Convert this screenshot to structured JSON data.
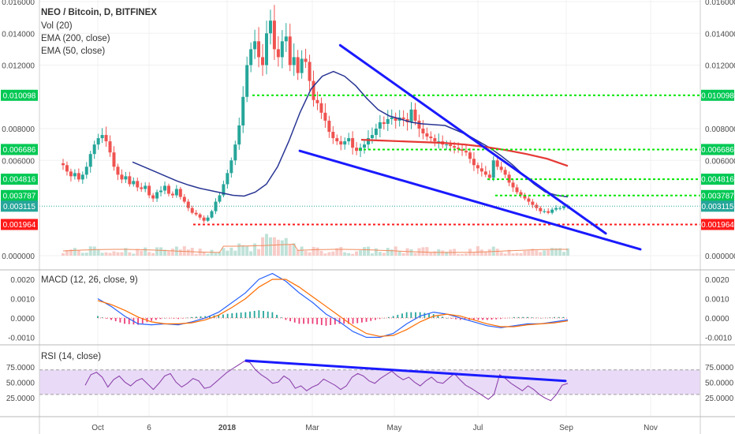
{
  "chart_data": {
    "type": "candlestick",
    "symbol_label": "NEO / Bitcoin, D, BITFINEX",
    "legend_lines": [
      "Vol (20)",
      "EMA (200, close)",
      "EMA (50, close)"
    ],
    "x_axis": {
      "ticks": [
        {
          "label": "Oct",
          "bold": false
        },
        {
          "label": "6",
          "bold": false
        },
        {
          "label": "2018",
          "bold": true
        },
        {
          "label": "Mar",
          "bold": false
        },
        {
          "label": "May",
          "bold": false
        },
        {
          "label": "Jul",
          "bold": false
        },
        {
          "label": "Sep",
          "bold": false
        },
        {
          "label": "Nov",
          "bold": false
        }
      ]
    },
    "price_axis": {
      "ticks": [
        "0.016000",
        "0.014000",
        "0.012000",
        "0.008000",
        "0.006000",
        "0.000000"
      ],
      "ylim": [
        0,
        0.016
      ]
    },
    "levels": [
      {
        "label": "0.010098",
        "value": 0.010098,
        "color": "#00e600",
        "tag_color": "#00c853",
        "style": "dotted"
      },
      {
        "label": "0.006686",
        "value": 0.006686,
        "color": "#00e600",
        "tag_color": "#00c853",
        "style": "dotted"
      },
      {
        "label": "0.004816",
        "value": 0.004816,
        "color": "#00e600",
        "tag_color": "#00c853",
        "style": "dotted"
      },
      {
        "label": "0.003787",
        "value": 0.003787,
        "color": "#00e600",
        "tag_color": "#00c853",
        "style": "dotted"
      },
      {
        "label": "0.003115",
        "value": 0.003115,
        "color": "#26a69a",
        "tag_color": "#26a69a",
        "style": "dotted-thin"
      },
      {
        "label": "0.001964",
        "value": 0.001964,
        "color": "#ff1a1a",
        "tag_color": "#ff1a1a",
        "style": "dotted"
      }
    ],
    "price_series": [
      0.0057,
      0.0053,
      0.005,
      0.0052,
      0.0048,
      0.0051,
      0.0056,
      0.0064,
      0.007,
      0.0074,
      0.0076,
      0.0072,
      0.0065,
      0.0056,
      0.0051,
      0.0048,
      0.005,
      0.0045,
      0.0047,
      0.0043,
      0.0042,
      0.0044,
      0.0038,
      0.0036,
      0.004,
      0.0041,
      0.0044,
      0.0039,
      0.0038,
      0.0042,
      0.0037,
      0.0034,
      0.003,
      0.0027,
      0.0026,
      0.0024,
      0.0022,
      0.0024,
      0.0028,
      0.0034,
      0.0038,
      0.0045,
      0.0052,
      0.006,
      0.007,
      0.0082,
      0.01,
      0.012,
      0.013,
      0.0135,
      0.0125,
      0.012,
      0.014,
      0.0148,
      0.013,
      0.0125,
      0.0135,
      0.0138,
      0.012,
      0.0125,
      0.0115,
      0.0124,
      0.0122,
      0.011,
      0.0098,
      0.0096,
      0.009,
      0.0085,
      0.0078,
      0.0074,
      0.0072,
      0.007,
      0.0072,
      0.0074,
      0.0068,
      0.0066,
      0.0068,
      0.007,
      0.0074,
      0.0076,
      0.008,
      0.0084,
      0.0083,
      0.0086,
      0.0087,
      0.0085,
      0.0087,
      0.0086,
      0.0084,
      0.0092,
      0.0085,
      0.008,
      0.0077,
      0.0075,
      0.0074,
      0.0072,
      0.0072,
      0.007,
      0.007,
      0.0069,
      0.0068,
      0.0067,
      0.0066,
      0.0065,
      0.0061,
      0.0057,
      0.0055,
      0.0053,
      0.0051,
      0.0049,
      0.006,
      0.0056,
      0.0054,
      0.0051,
      0.0046,
      0.0043,
      0.004,
      0.0038,
      0.0036,
      0.0034,
      0.0032,
      0.003,
      0.0028,
      0.0028,
      0.0027,
      0.0029,
      0.003,
      0.003,
      0.0031,
      0.00315
    ],
    "ema50_series": [
      0.0059,
      0.0056,
      0.0053,
      0.005,
      0.0047,
      0.00445,
      0.00425,
      0.0041,
      0.00395,
      0.0038,
      0.00375,
      0.004,
      0.0045,
      0.0056,
      0.0072,
      0.009,
      0.0105,
      0.0113,
      0.0116,
      0.0113,
      0.0107,
      0.0099,
      0.0092,
      0.0088,
      0.0086,
      0.0084,
      0.0083,
      0.00825,
      0.0082,
      0.0079,
      0.0076,
      0.0072,
      0.0068,
      0.0063,
      0.00575,
      0.0051,
      0.0045,
      0.004,
      0.0038,
      0.0037
    ],
    "ema200_series": [
      0.0073,
      0.00725,
      0.0072,
      0.00715,
      0.0071,
      0.007,
      0.00685,
      0.00665,
      0.0064,
      0.0061,
      0.00565
    ],
    "trendlines": [
      {
        "name": "upper",
        "from": [
          0.48,
          0.01325
        ],
        "to": [
          0.94,
          0.0014
        ]
      },
      {
        "name": "lower",
        "from": [
          0.41,
          0.0066
        ],
        "to": [
          1.0,
          0.0004
        ]
      }
    ],
    "macd": {
      "label": "MACD (12, 26, close, 9)",
      "ticks": [
        "0.0020",
        "0.0010",
        "0.0000",
        "-0.0010"
      ],
      "ylim": [
        -0.0012,
        0.0024
      ],
      "macd_series": [
        0.001,
        0.0006,
        0.0001,
        -0.0003,
        -0.00035,
        -0.0003,
        -0.00035,
        -0.0002,
        0.0,
        0.0003,
        0.0008,
        0.0013,
        0.002,
        0.0023,
        0.0019,
        0.0013,
        0.0008,
        0.0002,
        -0.0002,
        -0.0007,
        -0.001,
        -0.001,
        -0.0008,
        -0.0003,
        0.0001,
        0.0003,
        0.0002,
        0.0,
        -0.0002,
        -0.0004,
        -0.0005,
        -0.0004,
        -0.0003,
        -0.0003,
        -0.0002,
        -0.0001
      ],
      "signal_series": [
        0.0009,
        0.0007,
        0.0004,
        5e-05,
        -0.0002,
        -0.0003,
        -0.0003,
        -0.00025,
        -0.0001,
        0.00015,
        0.00055,
        0.001,
        0.0016,
        0.002,
        0.002,
        0.0016,
        0.0011,
        0.0006,
        0.0001,
        -0.0004,
        -0.0008,
        -0.00095,
        -0.0009,
        -0.0006,
        -0.0002,
        0.0001,
        0.0002,
        0.0001,
        -0.0001,
        -0.0003,
        -0.00045,
        -0.00045,
        -0.00035,
        -0.0003,
        -0.00025,
        -0.00015
      ]
    },
    "rsi": {
      "label": "RSI (14, close)",
      "ticks": [
        "75.0000",
        "50.0000",
        "25.0000"
      ],
      "ylim": [
        10,
        90
      ],
      "band": [
        30,
        70
      ],
      "series": [
        45,
        62,
        66,
        58,
        42,
        54,
        60,
        50,
        44,
        52,
        56,
        47,
        38,
        48,
        60,
        64,
        50,
        42,
        48,
        56,
        52,
        40,
        42,
        50,
        58,
        66,
        72,
        78,
        84,
        82,
        70,
        62,
        56,
        48,
        50,
        60,
        54,
        40,
        44,
        36,
        42,
        46,
        55,
        50,
        45,
        38,
        44,
        58,
        64,
        60,
        52,
        48,
        56,
        62,
        68,
        60,
        54,
        58,
        50,
        44,
        52,
        58,
        50,
        48,
        56,
        64,
        54,
        45,
        40,
        34,
        28,
        22,
        30,
        62,
        56,
        48,
        42,
        36,
        44,
        38,
        30,
        24,
        20,
        30,
        45,
        48
      ]
    },
    "rsi_trendline": {
      "from": [
        0.3,
        85
      ],
      "to": [
        0.97,
        52
      ]
    }
  }
}
